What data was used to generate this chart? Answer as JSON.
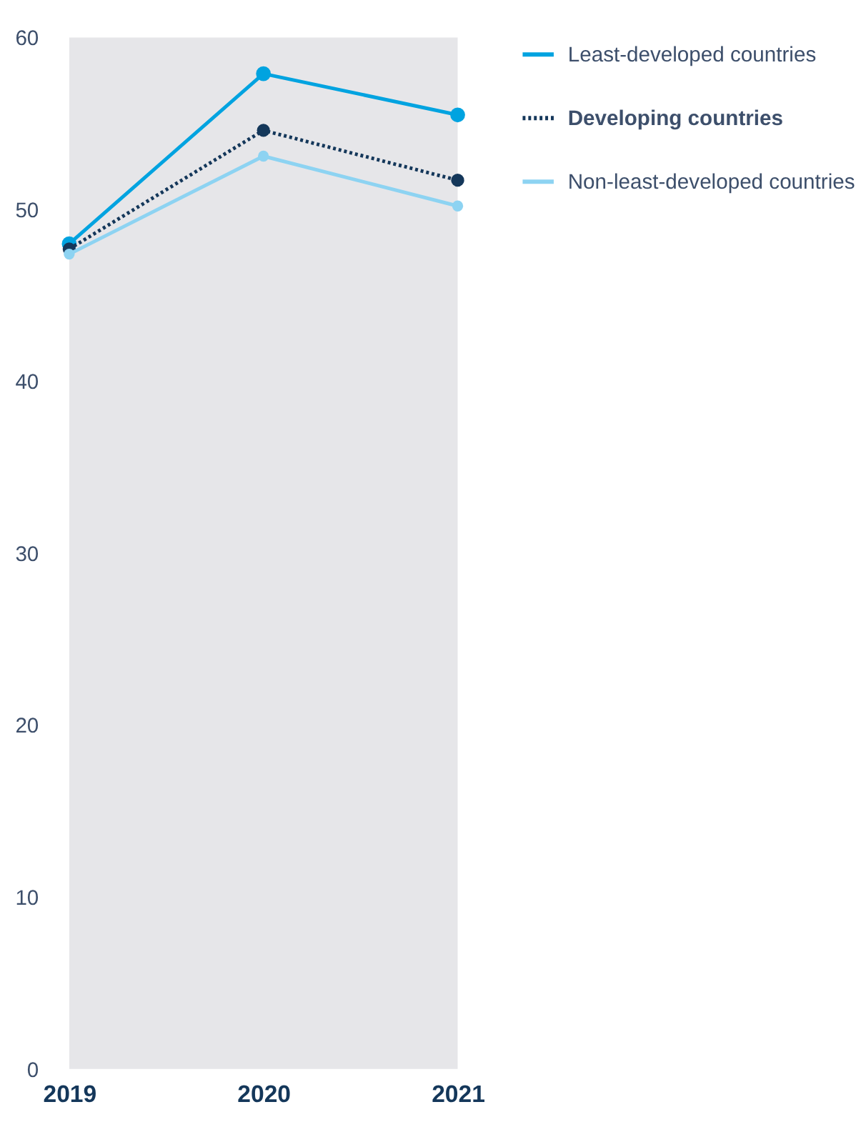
{
  "chart_data": {
    "type": "line",
    "categories": [
      "2019",
      "2020",
      "2021"
    ],
    "series": [
      {
        "name": "Least-developed countries",
        "color": "#00a3e0",
        "values": [
          48.0,
          57.9,
          55.5
        ],
        "line_style": "solid"
      },
      {
        "name": "Developing countries",
        "color": "#14375a",
        "values": [
          47.7,
          54.6,
          51.7
        ],
        "line_style": "dotted"
      },
      {
        "name": "Non-least-developed countries",
        "color": "#8dd3f2",
        "values": [
          47.4,
          53.1,
          50.2
        ],
        "line_style": "solid"
      }
    ],
    "ylim": [
      0,
      60
    ],
    "yticks": [
      0,
      10,
      20,
      30,
      40,
      50,
      60
    ],
    "grid": false,
    "legend": "top right",
    "marker": "circle"
  }
}
